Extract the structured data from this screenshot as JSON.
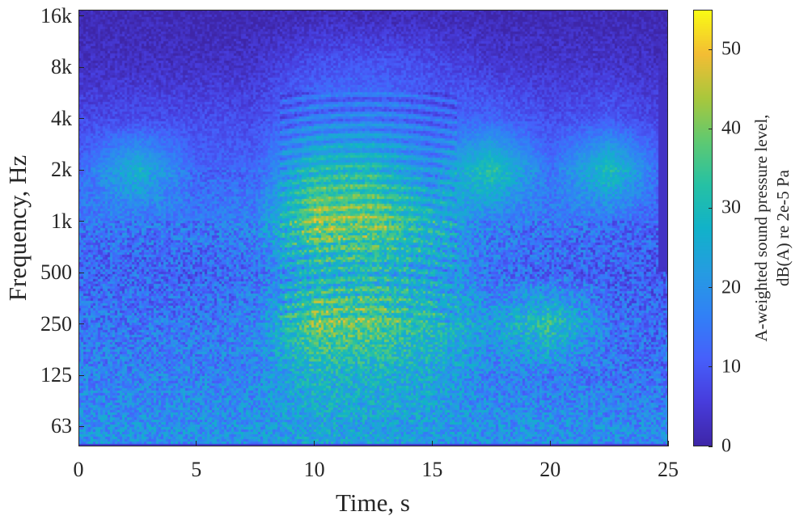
{
  "chart_data": {
    "type": "heatmap",
    "title": "",
    "xlabel": "Time, s",
    "ylabel": "Frequency, Hz",
    "xlim": [
      0,
      25
    ],
    "ylim_hz": [
      48,
      17400
    ],
    "y_scale": "log2",
    "x_ticks": [
      0,
      5,
      10,
      15,
      20,
      25
    ],
    "y_ticks": [
      {
        "value": 63,
        "label": "63"
      },
      {
        "value": 125,
        "label": "125"
      },
      {
        "value": 250,
        "label": "250"
      },
      {
        "value": 500,
        "label": "500"
      },
      {
        "value": 1000,
        "label": "1k"
      },
      {
        "value": 2000,
        "label": "2k"
      },
      {
        "value": 4000,
        "label": "4k"
      },
      {
        "value": 8000,
        "label": "8k"
      },
      {
        "value": 16000,
        "label": "16k"
      }
    ],
    "colorbar": {
      "label_line1": "A-weighted sound pressure level,",
      "label_line2": "dB(A) re 2e-5 Pa",
      "range": [
        0,
        55
      ],
      "ticks": [
        0,
        10,
        20,
        30,
        40,
        50
      ],
      "colormap": "parula"
    },
    "grid": false,
    "approx_level_grid": {
      "time_s": [
        0,
        2.5,
        5,
        7.5,
        10,
        12.5,
        15,
        17.5,
        20,
        22.5,
        25
      ],
      "freq_hz": [
        63,
        125,
        250,
        500,
        1000,
        2000,
        4000,
        8000,
        16000
      ],
      "db": [
        [
          20,
          20,
          20,
          20,
          24,
          24,
          22,
          20,
          20,
          19,
          18
        ],
        [
          17,
          17,
          17,
          18,
          28,
          27,
          25,
          17,
          16,
          15,
          14
        ],
        [
          15,
          15,
          15,
          17,
          40,
          38,
          30,
          22,
          34,
          15,
          12
        ],
        [
          12,
          12,
          12,
          14,
          26,
          28,
          24,
          14,
          12,
          11,
          10
        ],
        [
          15,
          15,
          15,
          17,
          42,
          40,
          28,
          16,
          15,
          14,
          12
        ],
        [
          12,
          28,
          12,
          12,
          30,
          30,
          18,
          34,
          14,
          32,
          10
        ],
        [
          7,
          8,
          8,
          8,
          15,
          16,
          12,
          12,
          8,
          10,
          6
        ],
        [
          3,
          3,
          3,
          4,
          9,
          10,
          8,
          5,
          4,
          4,
          3
        ],
        [
          1,
          1,
          1,
          1,
          2,
          2,
          2,
          1,
          1,
          1,
          1
        ]
      ]
    }
  }
}
